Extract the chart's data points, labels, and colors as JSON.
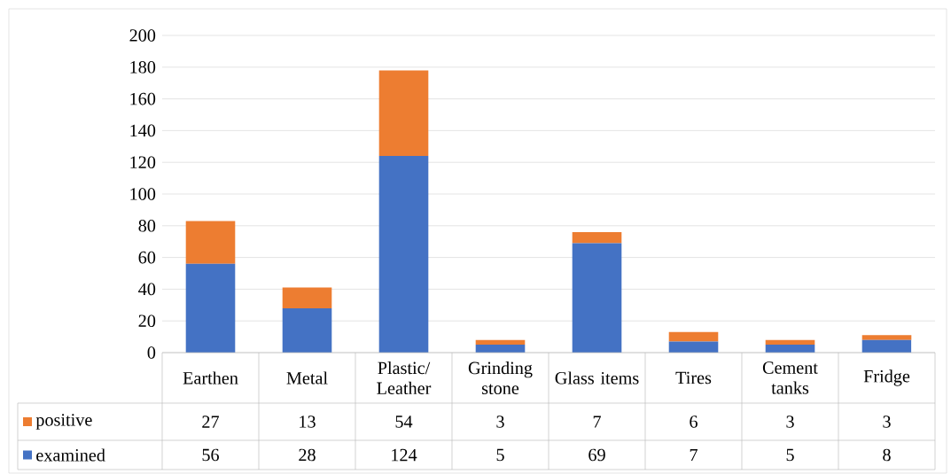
{
  "chart_data": {
    "type": "bar",
    "stacked": true,
    "categories": [
      "Earthen",
      "Metal",
      "Plastic/Leather",
      "Grinding stone",
      "Glass items",
      "Tires",
      "Cement tanks",
      "Fridge"
    ],
    "series": [
      {
        "name": "examined",
        "color": "#4472c4",
        "values": [
          56,
          28,
          124,
          5,
          69,
          7,
          5,
          8
        ]
      },
      {
        "name": "positive",
        "color": "#ed7d31",
        "values": [
          27,
          13,
          54,
          3,
          7,
          6,
          3,
          3
        ]
      }
    ],
    "ylim": [
      0,
      200
    ],
    "yticks": [
      0,
      20,
      40,
      60,
      80,
      100,
      120,
      140,
      160,
      180,
      200
    ],
    "grid": "y",
    "legend": "bottom",
    "data_labels": true
  }
}
